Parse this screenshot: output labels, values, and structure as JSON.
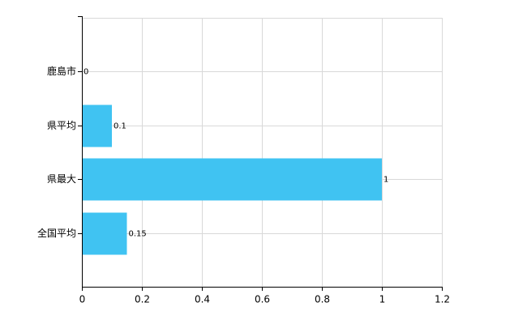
{
  "chart_data": {
    "type": "bar",
    "orientation": "horizontal",
    "categories": [
      "鹿島市",
      "県平均",
      "県最大",
      "全国平均"
    ],
    "values": [
      0,
      0.1,
      1,
      0.15
    ],
    "color": "#40c3f2",
    "xlim": [
      0,
      1.2
    ],
    "xticks": [
      0,
      0.2,
      0.4,
      0.6,
      0.8,
      1,
      1.2
    ],
    "grid": true
  }
}
